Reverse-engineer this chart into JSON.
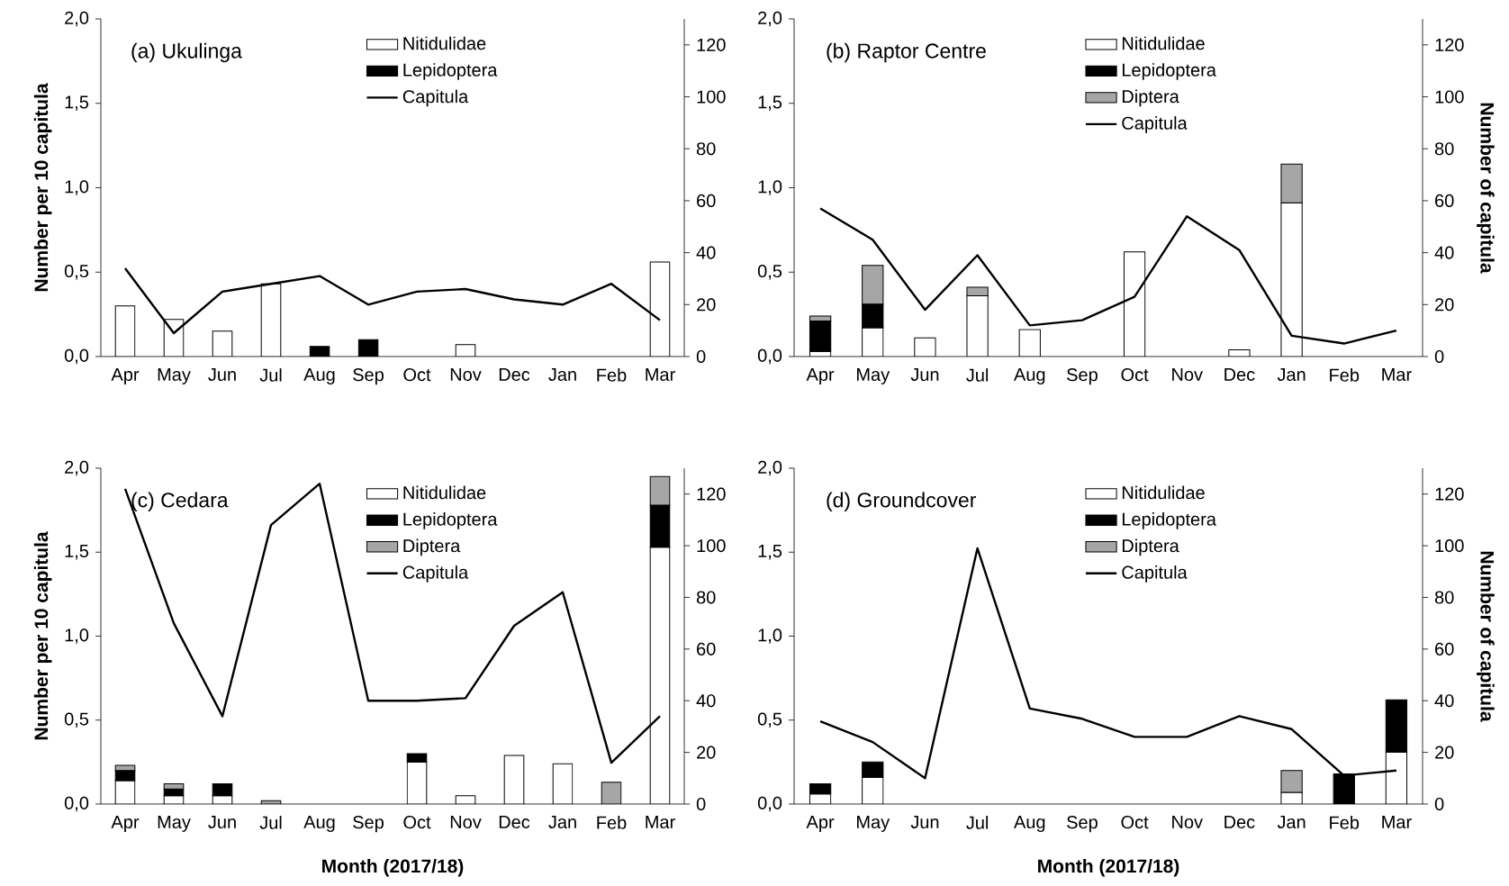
{
  "chart_data": [
    {
      "type": "bar",
      "title": "(a) Ukulinga",
      "stacked": true,
      "categories": [
        "Apr",
        "May",
        "Jun",
        "Jul",
        "Aug",
        "Sep",
        "Oct",
        "Nov",
        "Dec",
        "Jan",
        "Feb",
        "Mar"
      ],
      "ylabel": "Number per 10 capitula",
      "ylim": [
        0,
        2
      ],
      "yticks": [
        {
          "value": 0,
          "label": "0,0"
        },
        {
          "value": 0.5,
          "label": "0,5"
        },
        {
          "value": 1,
          "label": "1,0"
        },
        {
          "value": 1.5,
          "label": "1,5"
        },
        {
          "value": 2,
          "label": "2,0"
        }
      ],
      "y2lim": [
        0,
        130
      ],
      "y2ticks": [
        0,
        20,
        40,
        60,
        80,
        100,
        120
      ],
      "legend": "top",
      "series": [
        {
          "name": "Nitidulidae",
          "color": "#ffffff",
          "values": [
            0.3,
            0.22,
            0.15,
            0.43,
            0,
            0,
            0,
            0.07,
            0,
            0,
            0,
            0.56
          ]
        },
        {
          "name": "Lepidoptera",
          "color": "#000000",
          "values": [
            0,
            0,
            0,
            0,
            0.06,
            0.1,
            0,
            0,
            0,
            0,
            0,
            0
          ]
        },
        {
          "name": "Capitula",
          "type": "line",
          "axis": "y2",
          "color": "#000000",
          "values": [
            34,
            9,
            25,
            28,
            31,
            20,
            25,
            26,
            22,
            20,
            28,
            14
          ]
        }
      ]
    },
    {
      "type": "bar",
      "title": "(b) Raptor Centre",
      "stacked": true,
      "categories": [
        "Apr",
        "May",
        "Jun",
        "Jul",
        "Aug",
        "Sep",
        "Oct",
        "Nov",
        "Dec",
        "Jan",
        "Feb",
        "Mar"
      ],
      "y2label": "Number of capitula",
      "ylim": [
        0,
        2
      ],
      "yticks": [
        {
          "value": 0,
          "label": "0,0"
        },
        {
          "value": 0.5,
          "label": "0,5"
        },
        {
          "value": 1,
          "label": "1,0"
        },
        {
          "value": 1.5,
          "label": "1,5"
        },
        {
          "value": 2,
          "label": "2,0"
        }
      ],
      "y2lim": [
        0,
        130
      ],
      "y2ticks": [
        0,
        20,
        40,
        60,
        80,
        100,
        120
      ],
      "legend": "top",
      "series": [
        {
          "name": "Nitidulidae",
          "color": "#ffffff",
          "values": [
            0.03,
            0.17,
            0.11,
            0.36,
            0.16,
            0,
            0.62,
            0,
            0.04,
            0.91,
            0,
            0
          ]
        },
        {
          "name": "Lepidoptera",
          "color": "#000000",
          "values": [
            0.18,
            0.14,
            0,
            0,
            0,
            0,
            0,
            0,
            0,
            0,
            0,
            0
          ]
        },
        {
          "name": "Diptera",
          "color": "#a6a6a6",
          "values": [
            0.03,
            0.23,
            0,
            0.05,
            0,
            0,
            0,
            0,
            0,
            0.23,
            0,
            0
          ]
        },
        {
          "name": "Capitula",
          "type": "line",
          "axis": "y2",
          "color": "#000000",
          "values": [
            57,
            45,
            18,
            39,
            12,
            14,
            23,
            54,
            41,
            8,
            5,
            10
          ]
        }
      ]
    },
    {
      "type": "bar",
      "title": "(c) Cedara",
      "stacked": true,
      "categories": [
        "Apr",
        "May",
        "Jun",
        "Jul",
        "Aug",
        "Sep",
        "Oct",
        "Nov",
        "Dec",
        "Jan",
        "Feb",
        "Mar"
      ],
      "xlabel": "Month (2017/18)",
      "ylabel": "Number per 10 capitula",
      "ylim": [
        0,
        2
      ],
      "yticks": [
        {
          "value": 0,
          "label": "0,0"
        },
        {
          "value": 0.5,
          "label": "0,5"
        },
        {
          "value": 1,
          "label": "1,0"
        },
        {
          "value": 1.5,
          "label": "1,5"
        },
        {
          "value": 2,
          "label": "2,0"
        }
      ],
      "y2lim": [
        0,
        130
      ],
      "y2ticks": [
        0,
        20,
        40,
        60,
        80,
        100,
        120
      ],
      "legend": "top",
      "series": [
        {
          "name": "Nitidulidae",
          "color": "#ffffff",
          "values": [
            0.14,
            0.05,
            0.05,
            0,
            0,
            0,
            0.25,
            0.05,
            0.29,
            0.24,
            0,
            1.53
          ]
        },
        {
          "name": "Lepidoptera",
          "color": "#000000",
          "values": [
            0.06,
            0.04,
            0.07,
            0,
            0,
            0,
            0.05,
            0,
            0,
            0,
            0,
            0.25
          ]
        },
        {
          "name": "Diptera",
          "color": "#a6a6a6",
          "values": [
            0.03,
            0.03,
            0,
            0.02,
            0,
            0,
            0,
            0,
            0,
            0,
            0.13,
            0.17
          ]
        },
        {
          "name": "Capitula",
          "type": "line",
          "axis": "y2",
          "color": "#000000",
          "values": [
            122,
            70,
            34,
            108,
            124,
            40,
            40,
            41,
            69,
            82,
            16,
            34
          ]
        }
      ]
    },
    {
      "type": "bar",
      "title": "(d) Groundcover",
      "stacked": true,
      "categories": [
        "Apr",
        "May",
        "Jun",
        "Jul",
        "Aug",
        "Sep",
        "Oct",
        "Nov",
        "Dec",
        "Jan",
        "Feb",
        "Mar"
      ],
      "xlabel": "Month (2017/18)",
      "y2label": "Number of capitula",
      "ylim": [
        0,
        2
      ],
      "yticks": [
        {
          "value": 0,
          "label": "0,0"
        },
        {
          "value": 0.5,
          "label": "0,5"
        },
        {
          "value": 1,
          "label": "1,0"
        },
        {
          "value": 1.5,
          "label": "1,5"
        },
        {
          "value": 2,
          "label": "2,0"
        }
      ],
      "y2lim": [
        0,
        130
      ],
      "y2ticks": [
        0,
        20,
        40,
        60,
        80,
        100,
        120
      ],
      "legend": "top",
      "series": [
        {
          "name": "Nitidulidae",
          "color": "#ffffff",
          "values": [
            0.06,
            0.16,
            0,
            0,
            0,
            0,
            0,
            0,
            0,
            0.07,
            0,
            0.31
          ]
        },
        {
          "name": "Lepidoptera",
          "color": "#000000",
          "values": [
            0.06,
            0.09,
            0,
            0,
            0,
            0,
            0,
            0,
            0,
            0,
            0.18,
            0.31
          ]
        },
        {
          "name": "Diptera",
          "color": "#a6a6a6",
          "values": [
            0,
            0,
            0,
            0,
            0,
            0,
            0,
            0,
            0,
            0.13,
            0,
            0
          ]
        },
        {
          "name": "Capitula",
          "type": "line",
          "axis": "y2",
          "color": "#000000",
          "values": [
            32,
            24,
            10,
            99,
            37,
            33,
            26,
            26,
            34,
            29,
            11,
            13
          ]
        }
      ]
    }
  ]
}
